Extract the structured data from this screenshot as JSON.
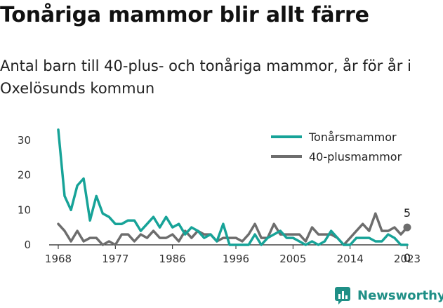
{
  "title": "Tonåriga mammor blir allt färre",
  "subtitle": "Antal barn till 40-plus- och tonåriga mammor, år för år i Oxelösunds kommun",
  "brand": "Newsworthy",
  "chart_data": {
    "type": "line",
    "x": [
      1968,
      1969,
      1970,
      1971,
      1972,
      1973,
      1974,
      1975,
      1976,
      1977,
      1978,
      1979,
      1980,
      1981,
      1982,
      1983,
      1984,
      1985,
      1986,
      1987,
      1988,
      1989,
      1990,
      1991,
      1992,
      1993,
      1994,
      1995,
      1996,
      1997,
      1998,
      1999,
      2000,
      2001,
      2002,
      2003,
      2004,
      2005,
      2006,
      2007,
      2008,
      2009,
      2010,
      2011,
      2012,
      2013,
      2014,
      2015,
      2016,
      2017,
      2018,
      2019,
      2020,
      2021,
      2022,
      2023
    ],
    "x_ticks": [
      "1968",
      "1977",
      "1986",
      "1996",
      "2005",
      "2014",
      "2023"
    ],
    "x_tick_values": [
      1968,
      1977,
      1986,
      1996,
      2005,
      2014,
      2023
    ],
    "y_ticks": [
      "0",
      "10",
      "20",
      "30"
    ],
    "y_tick_values": [
      0,
      10,
      20,
      30
    ],
    "ylim": [
      0,
      35
    ],
    "series": [
      {
        "name": "Tonårsmammor",
        "color": "#17a398",
        "values": [
          33,
          14,
          10,
          17,
          19,
          7,
          14,
          9,
          8,
          6,
          6,
          7,
          7,
          4,
          6,
          8,
          5,
          8,
          5,
          6,
          3,
          5,
          4,
          2,
          3,
          1,
          6,
          0,
          0,
          0,
          0,
          3,
          0,
          2,
          3,
          4,
          2,
          2,
          1,
          0,
          1,
          0,
          1,
          4,
          2,
          0,
          0,
          2,
          2,
          2,
          1,
          1,
          3,
          2,
          0,
          0
        ],
        "end_label": "0"
      },
      {
        "name": "40-plusmammor",
        "color": "#6d6d6d",
        "values": [
          6,
          4,
          1,
          4,
          1,
          2,
          2,
          0,
          1,
          0,
          3,
          3,
          1,
          3,
          2,
          4,
          2,
          2,
          3,
          1,
          4,
          2,
          4,
          3,
          3,
          1,
          2,
          2,
          2,
          1,
          3,
          6,
          2,
          2,
          6,
          3,
          3,
          3,
          3,
          1,
          5,
          3,
          3,
          3,
          2,
          0,
          2,
          4,
          6,
          4,
          9,
          4,
          4,
          5,
          3,
          5
        ],
        "end_label": "5"
      }
    ],
    "legend_position": "top-right"
  }
}
